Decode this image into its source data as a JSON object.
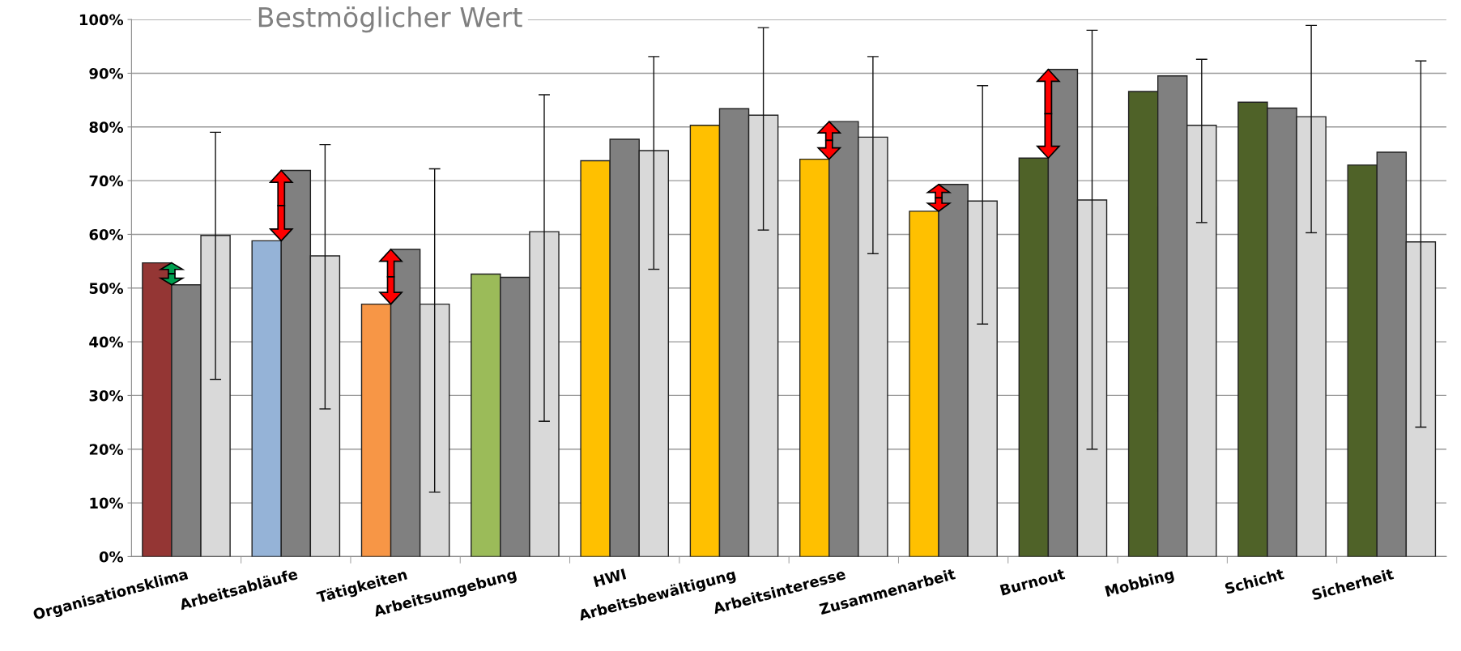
{
  "chart_data": {
    "type": "bar",
    "categories": [
      "Organisationsklima",
      "Arbeitsabläufe",
      "Tätigkeiten",
      "Arbeitsumgebung",
      "HWI",
      "Arbeitsbewältigung",
      "Arbeitsinteresse",
      "Zusammenarbeit",
      "Burnout",
      "Mobbing",
      "Schicht",
      "Sicherheit"
    ],
    "series": [
      {
        "colors": [
          "#943634",
          "#95b3d7",
          "#f79646",
          "#9bbb59",
          "#ffc000",
          "#ffc000",
          "#ffc000",
          "#ffc000",
          "#4f6228",
          "#4f6228",
          "#4f6228",
          "#4f6228"
        ],
        "values": [
          54.7,
          58.8,
          47.0,
          52.6,
          73.7,
          80.3,
          74.0,
          64.3,
          74.2,
          86.6,
          84.6,
          72.9
        ]
      },
      {
        "color": "#808080",
        "values": [
          50.6,
          71.9,
          57.2,
          52.0,
          77.7,
          83.4,
          81.0,
          69.3,
          90.7,
          89.5,
          83.5,
          75.3
        ]
      },
      {
        "color": "#d9d9d9",
        "values": [
          59.8,
          56.0,
          47.0,
          60.5,
          75.6,
          82.2,
          78.1,
          66.2,
          66.4,
          80.3,
          81.9,
          58.6
        ],
        "errors": [
          [
            33,
            79
          ],
          [
            27.5,
            76.7
          ],
          [
            12,
            72.2
          ],
          [
            25.2,
            86
          ],
          [
            53.5,
            93.1
          ],
          [
            60.8,
            98.5
          ],
          [
            56.4,
            93.1
          ],
          [
            43.3,
            87.7
          ],
          [
            20,
            98
          ],
          [
            62.2,
            92.6
          ],
          [
            60.3,
            98.9
          ],
          [
            24.1,
            92.3
          ]
        ]
      }
    ],
    "ylim": [
      0,
      100
    ],
    "yticks": [
      {
        "value": 0,
        "label": "0%"
      },
      {
        "value": 10,
        "label": "10%"
      },
      {
        "value": 20,
        "label": "20%"
      },
      {
        "value": 30,
        "label": "30%"
      },
      {
        "value": 40,
        "label": "40%"
      },
      {
        "value": 50,
        "label": "50%"
      },
      {
        "value": 60,
        "label": "60%"
      },
      {
        "value": 70,
        "label": "70%"
      },
      {
        "value": 80,
        "label": "80%"
      },
      {
        "value": 90,
        "label": "90%"
      },
      {
        "value": 100,
        "label": "100%"
      }
    ],
    "grid": "y",
    "annotations": [
      "Bestmöglicher Wert"
    ]
  }
}
